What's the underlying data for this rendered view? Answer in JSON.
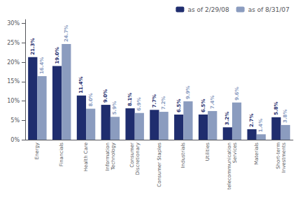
{
  "chart_data": {
    "type": "bar",
    "categories": [
      "Energy",
      "Financials",
      "Health Care",
      "Information\nTechnology",
      "Consumer\nDiscretionary",
      "Consumer Staples",
      "Industrials",
      "Utilities",
      "telecommunication\nServices",
      "Materials",
      "Short-term\nInvestments"
    ],
    "series": [
      {
        "name": "as of 2/29/08",
        "color": "#1f2d6e",
        "values": [
          21.3,
          19.0,
          11.4,
          9.0,
          8.1,
          7.7,
          6.5,
          6.5,
          3.2,
          2.7,
          5.8
        ],
        "value_labels": [
          "21.3%",
          "19.0%",
          "11.4%",
          "9.0%",
          "8.1%",
          "7.7%",
          "6.5%",
          "6.5%",
          "3.2%",
          "2.7%",
          "5.8%"
        ]
      },
      {
        "name": "as of 8/31/07",
        "color": "#8b9cbf",
        "values": [
          16.4,
          24.7,
          8.0,
          5.9,
          6.9,
          7.2,
          9.9,
          7.4,
          9.6,
          1.4,
          3.8
        ],
        "value_labels": [
          "16.4%",
          "24.7%",
          "8.0%",
          "5.9%",
          "6.9%",
          "7.2%",
          "9.9%",
          "7.4%",
          "9.6%",
          "1.4%",
          "3.8%"
        ]
      }
    ],
    "ylim": [
      0,
      31
    ],
    "yticks": [
      {
        "value": 0,
        "label": "0%"
      },
      {
        "value": 5,
        "label": "5%"
      },
      {
        "value": 10,
        "label": "10%"
      },
      {
        "value": 15,
        "label": "15%"
      },
      {
        "value": 20,
        "label": "20%"
      },
      {
        "value": 25,
        "label": "25%"
      },
      {
        "value": 30,
        "label": "30%"
      }
    ],
    "grid": false,
    "legend": "upper right",
    "data_labels": true
  }
}
